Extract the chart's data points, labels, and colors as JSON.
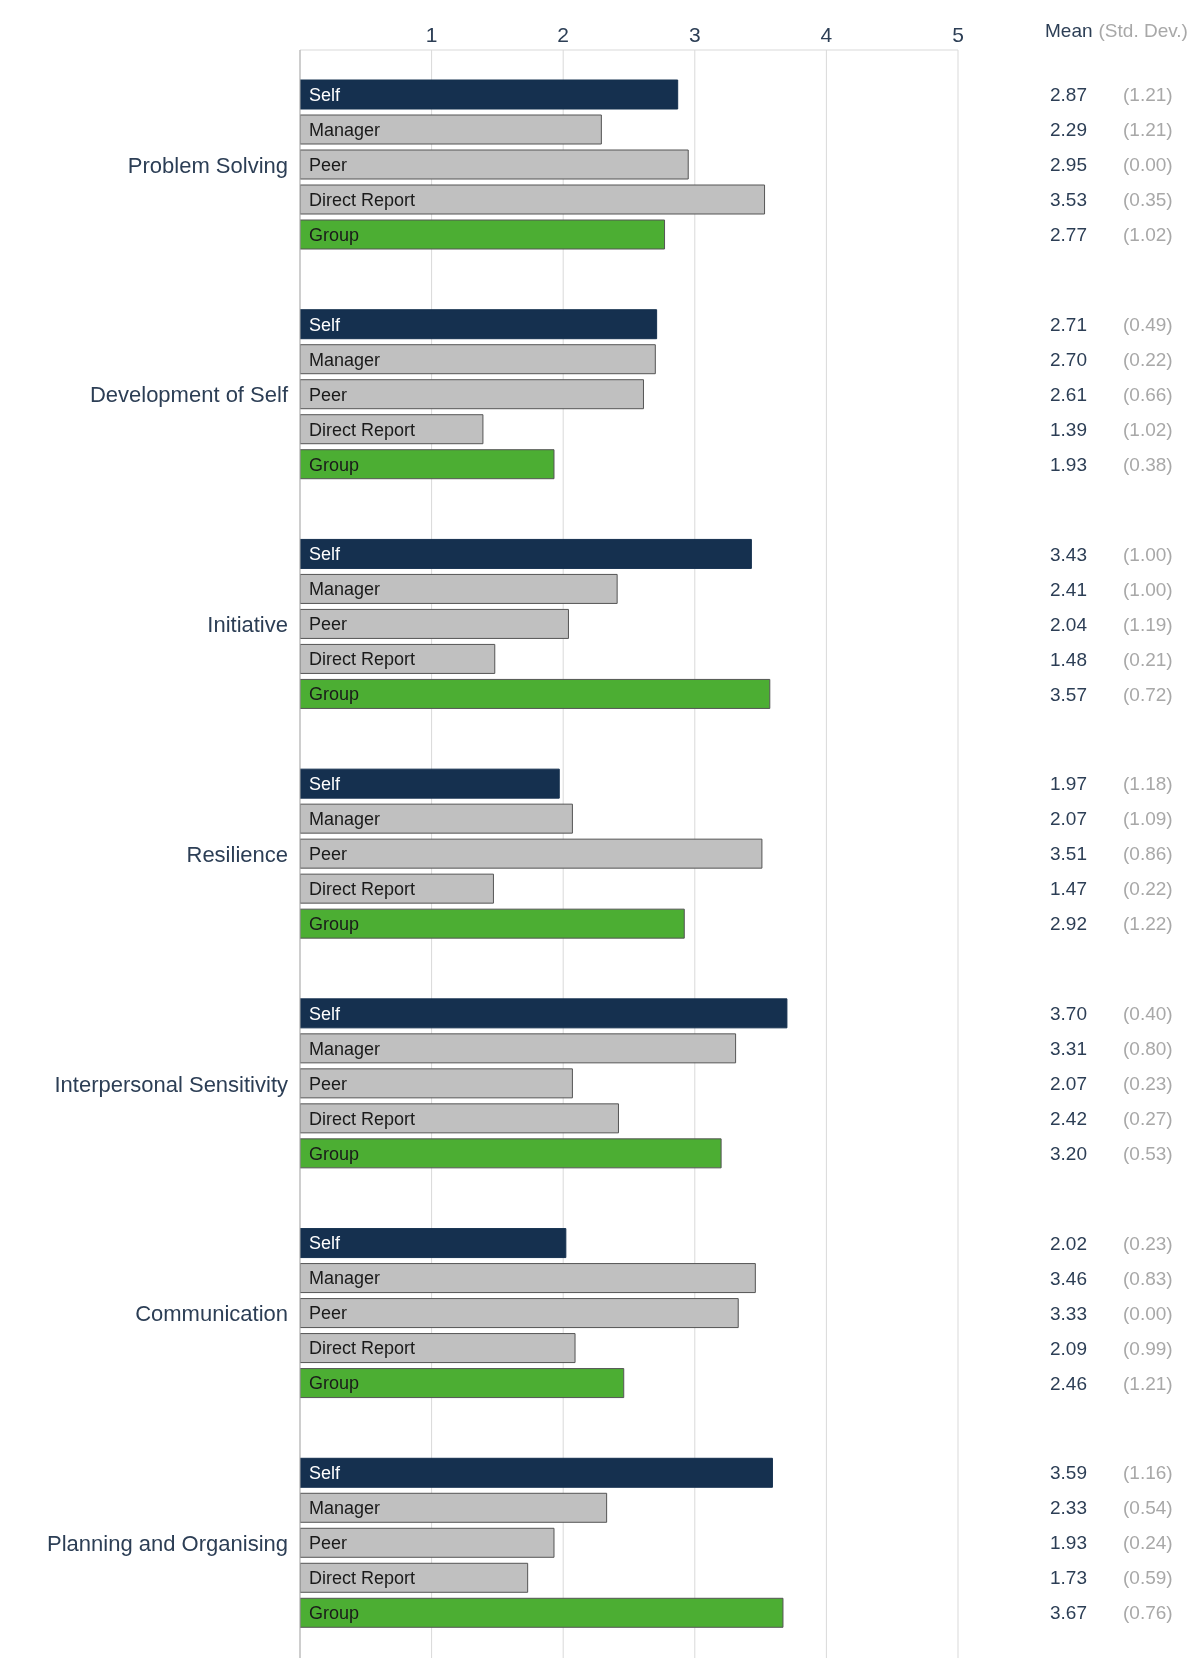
{
  "chart_data": {
    "type": "bar",
    "orientation": "horizontal",
    "categories": [
      "Problem Solving",
      "Development of Self",
      "Initiative",
      "Resilience",
      "Interpersonal Sensitivity",
      "Communication",
      "Planning and Organising"
    ],
    "xlim": [
      0,
      5
    ],
    "xticks": [
      1,
      2,
      3,
      4,
      5
    ],
    "grid": "x",
    "legend": false,
    "annotations": [
      "Mean",
      "(Std. Dev.)"
    ],
    "series": [
      {
        "name": "Self",
        "color": "#15304f",
        "values": [
          2.87,
          2.71,
          3.43,
          1.97,
          3.7,
          2.02,
          3.59
        ],
        "value_labels": [
          "2.87 (1.21)",
          "2.71 (0.49)",
          "3.43 (1.00)",
          "1.97 (1.18)",
          "3.70 (0.40)",
          "2.02 (0.23)",
          "3.59 (1.16)"
        ]
      },
      {
        "name": "Manager",
        "color": "#c0c0c0",
        "values": [
          2.29,
          2.7,
          2.41,
          2.07,
          3.31,
          3.46,
          2.33
        ],
        "value_labels": [
          "2.29 (1.21)",
          "2.70 (0.22)",
          "2.41 (1.00)",
          "2.07 (1.09)",
          "3.31 (0.80)",
          "3.46 (0.83)",
          "2.33 (0.54)"
        ]
      },
      {
        "name": "Peer",
        "color": "#c0c0c0",
        "values": [
          2.95,
          2.61,
          2.04,
          3.51,
          2.07,
          3.33,
          1.93
        ],
        "value_labels": [
          "2.95 (0.00)",
          "2.61 (0.66)",
          "2.04 (1.19)",
          "3.51 (0.86)",
          "2.07 (0.23)",
          "3.33 (0.00)",
          "1.93 (0.24)"
        ]
      },
      {
        "name": "Direct Report",
        "color": "#c0c0c0",
        "values": [
          3.53,
          1.39,
          1.48,
          1.47,
          2.42,
          2.09,
          1.73
        ],
        "value_labels": [
          "3.53 (0.35)",
          "1.39 (1.02)",
          "1.48 (0.21)",
          "1.47 (0.22)",
          "2.42 (0.27)",
          "2.09 (0.99)",
          "1.73 (0.59)"
        ]
      },
      {
        "name": "Group",
        "color": "#4cae33",
        "values": [
          2.77,
          1.93,
          3.57,
          2.92,
          3.2,
          2.46,
          3.67
        ],
        "value_labels": [
          "2.77 (1.02)",
          "1.93 (0.38)",
          "3.57 (0.72)",
          "2.92 (1.22)",
          "3.20 (0.53)",
          "2.46 (1.21)",
          "3.67 (0.76)"
        ]
      }
    ]
  }
}
